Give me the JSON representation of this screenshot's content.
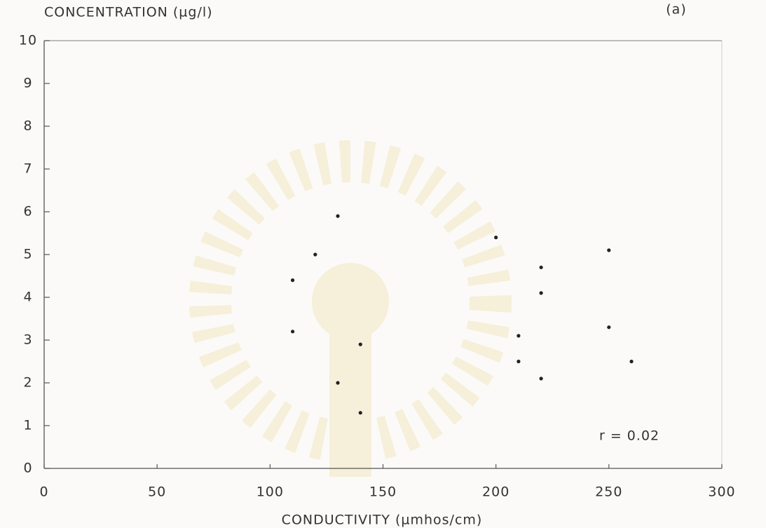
{
  "chart_data": {
    "type": "scatter",
    "title": "(a)",
    "y_label": "CONCENTRATION (µg/l)",
    "x_label": "CONDUCTIVITY (µmhos/cm)",
    "annotation": "r = 0.02",
    "x": [
      110,
      110,
      120,
      130,
      130,
      140,
      140,
      200,
      220,
      220,
      210,
      210,
      220,
      250,
      250,
      260
    ],
    "values": [
      4.4,
      3.2,
      5.0,
      5.9,
      2.0,
      2.9,
      1.3,
      5.4,
      4.7,
      4.1,
      3.1,
      2.5,
      2.1,
      5.1,
      3.3,
      2.5
    ],
    "color": "#222",
    "xlim": [
      0,
      300
    ],
    "xticks": [
      0,
      50,
      100,
      150,
      200,
      250,
      300
    ],
    "ylim": [
      0,
      10
    ],
    "yticks": [
      0,
      1,
      2,
      3,
      4,
      5,
      6,
      7,
      8,
      9,
      10
    ],
    "grid": false
  }
}
